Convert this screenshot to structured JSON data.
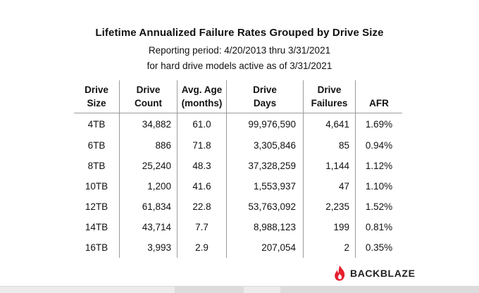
{
  "title": "Lifetime Annualized Failure Rates Grouped by Drive Size",
  "subtitle_line1": "Reporting period: 4/20/2013 thru 3/31/2021",
  "subtitle_line2": "for hard drive models active as of 3/31/2021",
  "headers": {
    "size": [
      "Drive",
      "Size"
    ],
    "count": [
      "Drive",
      "Count"
    ],
    "age": [
      "Avg. Age",
      "(months)"
    ],
    "days": [
      "Drive",
      "Days"
    ],
    "failures": [
      "Drive",
      "Failures"
    ],
    "afr": [
      "",
      "AFR"
    ]
  },
  "rows": [
    {
      "size": "4TB",
      "count": "34,882",
      "age": "61.0",
      "days": "99,976,590",
      "failures": "4,641",
      "afr": "1.69%"
    },
    {
      "size": "6TB",
      "count": "886",
      "age": "71.8",
      "days": "3,305,846",
      "failures": "85",
      "afr": "0.94%"
    },
    {
      "size": "8TB",
      "count": "25,240",
      "age": "48.3",
      "days": "37,328,259",
      "failures": "1,144",
      "afr": "1.12%"
    },
    {
      "size": "10TB",
      "count": "1,200",
      "age": "41.6",
      "days": "1,553,937",
      "failures": "47",
      "afr": "1.10%"
    },
    {
      "size": "12TB",
      "count": "61,834",
      "age": "22.8",
      "days": "53,763,092",
      "failures": "2,235",
      "afr": "1.52%"
    },
    {
      "size": "14TB",
      "count": "43,714",
      "age": "7.7",
      "days": "8,988,123",
      "failures": "199",
      "afr": "0.81%"
    },
    {
      "size": "16TB",
      "count": "3,993",
      "age": "2.9",
      "days": "207,054",
      "failures": "2",
      "afr": "0.35%"
    }
  ],
  "brand": {
    "name": "BACKBLAZE",
    "icon": "flame-icon",
    "color": "#e5202e"
  }
}
